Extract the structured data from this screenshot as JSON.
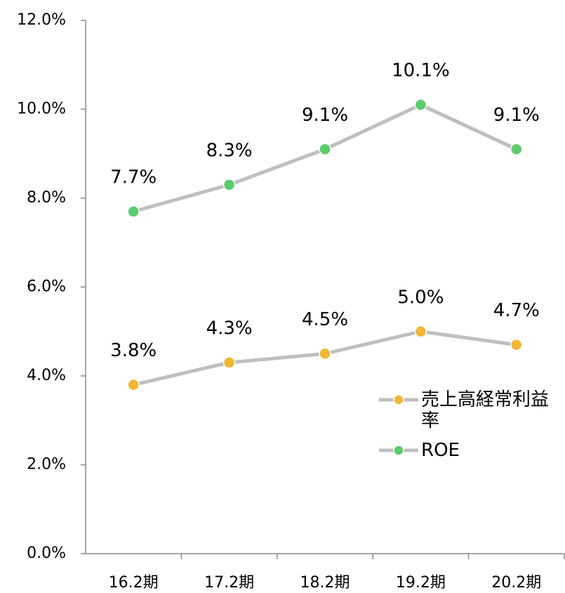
{
  "chart_data": {
    "type": "line",
    "categories": [
      "16.2期",
      "17.2期",
      "18.2期",
      "19.2期",
      "20.2期"
    ],
    "series": [
      {
        "name": "売上高経常利益率",
        "color": "#f2b735",
        "values": [
          3.8,
          4.3,
          4.5,
          5.0,
          4.7
        ],
        "value_labels": [
          "3.8%",
          "4.3%",
          "4.5%",
          "5.0%",
          "4.7%"
        ]
      },
      {
        "name": "ROE",
        "color": "#5bcb6c",
        "values": [
          7.7,
          8.3,
          9.1,
          10.1,
          9.1
        ],
        "value_labels": [
          "7.7%",
          "8.3%",
          "9.1%",
          "10.1%",
          "9.1%"
        ]
      }
    ],
    "line_color": "#bfbfbf",
    "ylim": [
      0,
      12
    ],
    "yticks": [
      {
        "value": 0,
        "label": "0.0%"
      },
      {
        "value": 2,
        "label": "2.0%"
      },
      {
        "value": 4,
        "label": "4.0%"
      },
      {
        "value": 6,
        "label": "6.0%"
      },
      {
        "value": 8,
        "label": "8.0%"
      },
      {
        "value": 10,
        "label": "10.0%"
      },
      {
        "value": 12,
        "label": "12.0%"
      }
    ],
    "grid": false,
    "legend": "right"
  }
}
